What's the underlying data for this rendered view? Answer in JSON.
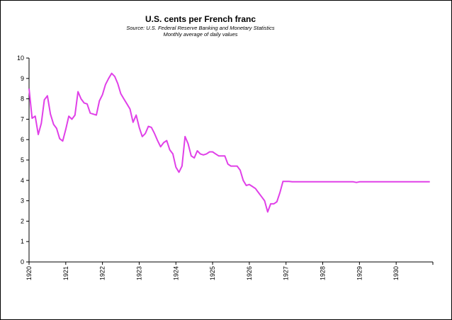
{
  "chart_data": {
    "type": "line",
    "title": "U.S. cents per French franc",
    "subtitle_lines": [
      "Source: U.S. Federal Reserve Banking and Monetary Statistics",
      "Monthly average of daily values"
    ],
    "xlabel": "",
    "ylabel": "",
    "ylim": [
      0,
      10
    ],
    "xlim": [
      1920,
      1931
    ],
    "grid": false,
    "legend": "none",
    "x_ticks": [
      "1920",
      "1921",
      "1922",
      "1923",
      "1924",
      "1925",
      "1926",
      "1927",
      "1928",
      "1929",
      "1930"
    ],
    "y_ticks": [
      "0",
      "1",
      "2",
      "3",
      "4",
      "5",
      "6",
      "7",
      "8",
      "9",
      "10"
    ],
    "line_color": "#e040e8",
    "series": [
      {
        "x": [
          1920.0,
          1920.083,
          1920.167,
          1920.25,
          1920.333,
          1920.417,
          1920.5,
          1920.583,
          1920.667,
          1920.75,
          1920.833,
          1920.917,
          1921.0,
          1921.083,
          1921.167,
          1921.25,
          1921.333,
          1921.417,
          1921.5,
          1921.583,
          1921.667,
          1921.75,
          1921.833,
          1921.917,
          1922.0,
          1922.083,
          1922.167,
          1922.25,
          1922.333,
          1922.417,
          1922.5,
          1922.583,
          1922.667,
          1922.75,
          1922.833,
          1922.917,
          1923.0,
          1923.083,
          1923.167,
          1923.25,
          1923.333,
          1923.417,
          1923.5,
          1923.583,
          1923.667,
          1923.75,
          1923.833,
          1923.917,
          1924.0,
          1924.083,
          1924.167,
          1924.25,
          1924.333,
          1924.417,
          1924.5,
          1924.583,
          1924.667,
          1924.75,
          1924.833,
          1924.917,
          1925.0,
          1925.083,
          1925.167,
          1925.25,
          1925.333,
          1925.417,
          1925.5,
          1925.583,
          1925.667,
          1925.75,
          1925.833,
          1925.917,
          1926.0,
          1926.083,
          1926.167,
          1926.25,
          1926.333,
          1926.417,
          1926.5,
          1926.583,
          1926.667,
          1926.75,
          1926.833,
          1926.917,
          1927.0,
          1927.083,
          1927.167,
          1927.25,
          1927.333,
          1927.417,
          1927.5,
          1927.583,
          1927.667,
          1927.75,
          1927.833,
          1927.917,
          1928.0,
          1928.083,
          1928.167,
          1928.25,
          1928.333,
          1928.417,
          1928.5,
          1928.583,
          1928.667,
          1928.75,
          1928.833,
          1928.917,
          1929.0,
          1929.083,
          1929.167,
          1929.25,
          1929.333,
          1929.417,
          1929.5,
          1929.583,
          1929.667,
          1929.75,
          1929.833,
          1929.917,
          1930.0,
          1930.083,
          1930.167,
          1930.25,
          1930.333,
          1930.417,
          1930.5,
          1930.583,
          1930.667,
          1930.75,
          1930.833,
          1930.917
        ],
        "values": [
          8.5,
          7.05,
          7.15,
          6.25,
          6.8,
          7.95,
          8.15,
          7.25,
          6.75,
          6.55,
          6.05,
          5.93,
          6.5,
          7.15,
          7.0,
          7.2,
          8.35,
          8.0,
          7.8,
          7.75,
          7.3,
          7.25,
          7.2,
          7.9,
          8.2,
          8.7,
          9.0,
          9.25,
          9.1,
          8.75,
          8.25,
          8.0,
          7.75,
          7.5,
          6.85,
          7.2,
          6.6,
          6.15,
          6.3,
          6.65,
          6.6,
          6.3,
          5.95,
          5.65,
          5.85,
          5.95,
          5.5,
          5.3,
          4.65,
          4.4,
          4.7,
          6.15,
          5.8,
          5.2,
          5.1,
          5.45,
          5.3,
          5.25,
          5.3,
          5.4,
          5.4,
          5.3,
          5.2,
          5.2,
          5.2,
          4.8,
          4.7,
          4.7,
          4.7,
          4.5,
          4.0,
          3.75,
          3.8,
          3.7,
          3.6,
          3.4,
          3.2,
          3.0,
          2.45,
          2.85,
          2.85,
          2.95,
          3.4,
          3.95,
          3.95,
          3.95,
          3.93,
          3.93,
          3.93,
          3.93,
          3.93,
          3.93,
          3.93,
          3.93,
          3.93,
          3.93,
          3.93,
          3.93,
          3.93,
          3.93,
          3.93,
          3.93,
          3.93,
          3.93,
          3.93,
          3.93,
          3.93,
          3.9,
          3.93,
          3.93,
          3.93,
          3.93,
          3.93,
          3.93,
          3.93,
          3.93,
          3.93,
          3.93,
          3.93,
          3.93,
          3.93,
          3.93,
          3.93,
          3.93,
          3.93,
          3.93,
          3.93,
          3.93,
          3.93,
          3.93,
          3.93,
          3.93
        ]
      }
    ]
  }
}
